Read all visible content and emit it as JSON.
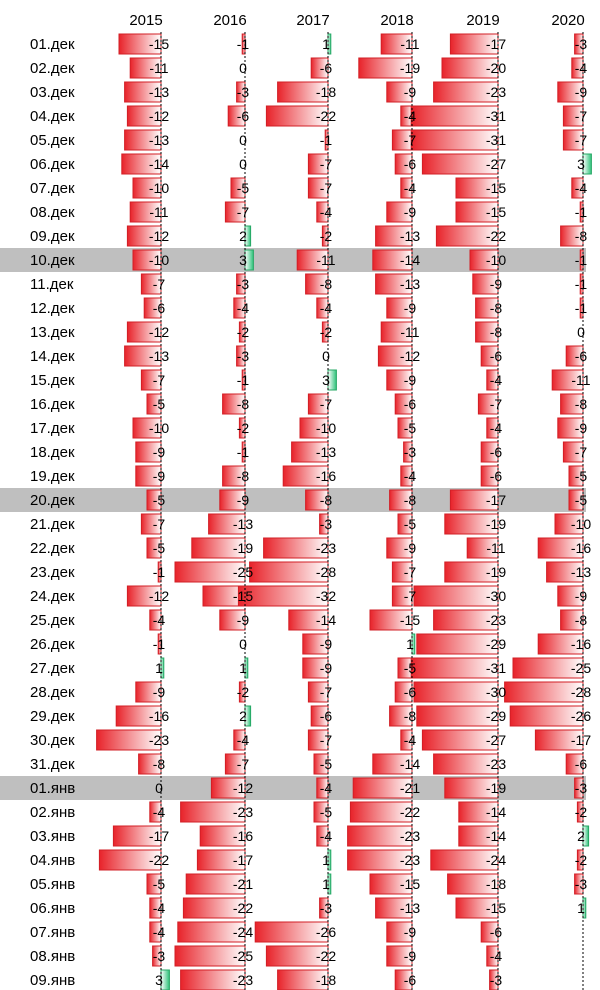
{
  "chart_data": {
    "type": "table",
    "x_scale_max_abs": 33,
    "highlighted_rows": [
      "10.дек",
      "20.дек",
      "01.янв"
    ],
    "colors": {
      "negative_bar": "#e8232a",
      "positive_bar": "#2ec27a",
      "highlight_row": "#bfbfbf",
      "axis": "#000000"
    },
    "years": [
      "2015",
      "2016",
      "2017",
      "2018",
      "2019",
      "2020"
    ],
    "dates": [
      "01.дек",
      "02.дек",
      "03.дек",
      "04.дек",
      "05.дек",
      "06.дек",
      "07.дек",
      "08.дек",
      "09.дек",
      "10.дек",
      "11.дек",
      "12.дек",
      "13.дек",
      "14.дек",
      "15.дек",
      "16.дек",
      "17.дек",
      "18.дек",
      "19.дек",
      "20.дек",
      "21.дек",
      "22.дек",
      "23.дек",
      "24.дек",
      "25.дек",
      "26.дек",
      "27.дек",
      "28.дек",
      "29.дек",
      "30.дек",
      "31.дек",
      "01.янв",
      "02.янв",
      "03.янв",
      "04.янв",
      "05.янв",
      "06.янв",
      "07.янв",
      "08.янв",
      "09.янв"
    ],
    "series": [
      {
        "name": "2015",
        "values": [
          -15,
          -11,
          -13,
          -12,
          -13,
          -14,
          -10,
          -11,
          -12,
          -10,
          -7,
          -6,
          -12,
          -13,
          -7,
          -5,
          -10,
          -9,
          -9,
          -5,
          -7,
          -5,
          -1,
          -12,
          -4,
          -1,
          1,
          -9,
          -16,
          -23,
          -8,
          0,
          -4,
          -17,
          -22,
          -5,
          -4,
          -4,
          -3,
          3
        ]
      },
      {
        "name": "2016",
        "values": [
          -1,
          0,
          -3,
          -6,
          0,
          0,
          -5,
          -7,
          2,
          3,
          -3,
          -4,
          -2,
          -3,
          -1,
          -8,
          -2,
          -1,
          -8,
          -9,
          -13,
          -19,
          -25,
          -15,
          -9,
          0,
          1,
          -2,
          2,
          -4,
          -7,
          -12,
          -23,
          -16,
          -17,
          -21,
          -22,
          -24,
          -25,
          -23
        ]
      },
      {
        "name": "2017",
        "values": [
          1,
          -6,
          -18,
          -22,
          -1,
          -7,
          -7,
          -4,
          -2,
          -11,
          -8,
          -4,
          -2,
          0,
          3,
          -7,
          -10,
          -13,
          -16,
          -8,
          -3,
          -23,
          -28,
          -32,
          -14,
          -9,
          -9,
          -7,
          -6,
          -7,
          -5,
          -4,
          -5,
          -4,
          1,
          1,
          -3,
          -26,
          -22,
          -18
        ]
      },
      {
        "name": "2018",
        "values": [
          -11,
          -19,
          -9,
          -4,
          -7,
          -6,
          -4,
          -9,
          -13,
          -14,
          -13,
          -9,
          -11,
          -12,
          -9,
          -6,
          -5,
          -3,
          -4,
          -8,
          -5,
          -9,
          -7,
          -7,
          -15,
          1,
          -5,
          -6,
          -8,
          -4,
          -14,
          -21,
          -22,
          -23,
          -23,
          -15,
          -13,
          -9,
          -9,
          -6
        ]
      },
      {
        "name": "2019",
        "values": [
          -17,
          -20,
          -23,
          -31,
          -31,
          -27,
          -15,
          -15,
          -22,
          -10,
          -9,
          -8,
          -8,
          -6,
          -4,
          -7,
          -4,
          -6,
          -6,
          -17,
          -19,
          -11,
          -19,
          -30,
          -23,
          -29,
          -31,
          -30,
          -29,
          -27,
          -23,
          -19,
          -14,
          -14,
          -24,
          -18,
          -15,
          -6,
          -4,
          -3
        ]
      },
      {
        "name": "2020",
        "values": [
          -3,
          -4,
          -9,
          -7,
          -7,
          3,
          -4,
          -1,
          -8,
          -1,
          -1,
          -1,
          0,
          -6,
          -11,
          -8,
          -9,
          -7,
          -5,
          -5,
          -10,
          -16,
          -13,
          -9,
          -8,
          -16,
          -25,
          -28,
          -26,
          -17,
          -6,
          -3,
          -2,
          2,
          -2,
          -3,
          1,
          null,
          null,
          null
        ]
      }
    ]
  }
}
